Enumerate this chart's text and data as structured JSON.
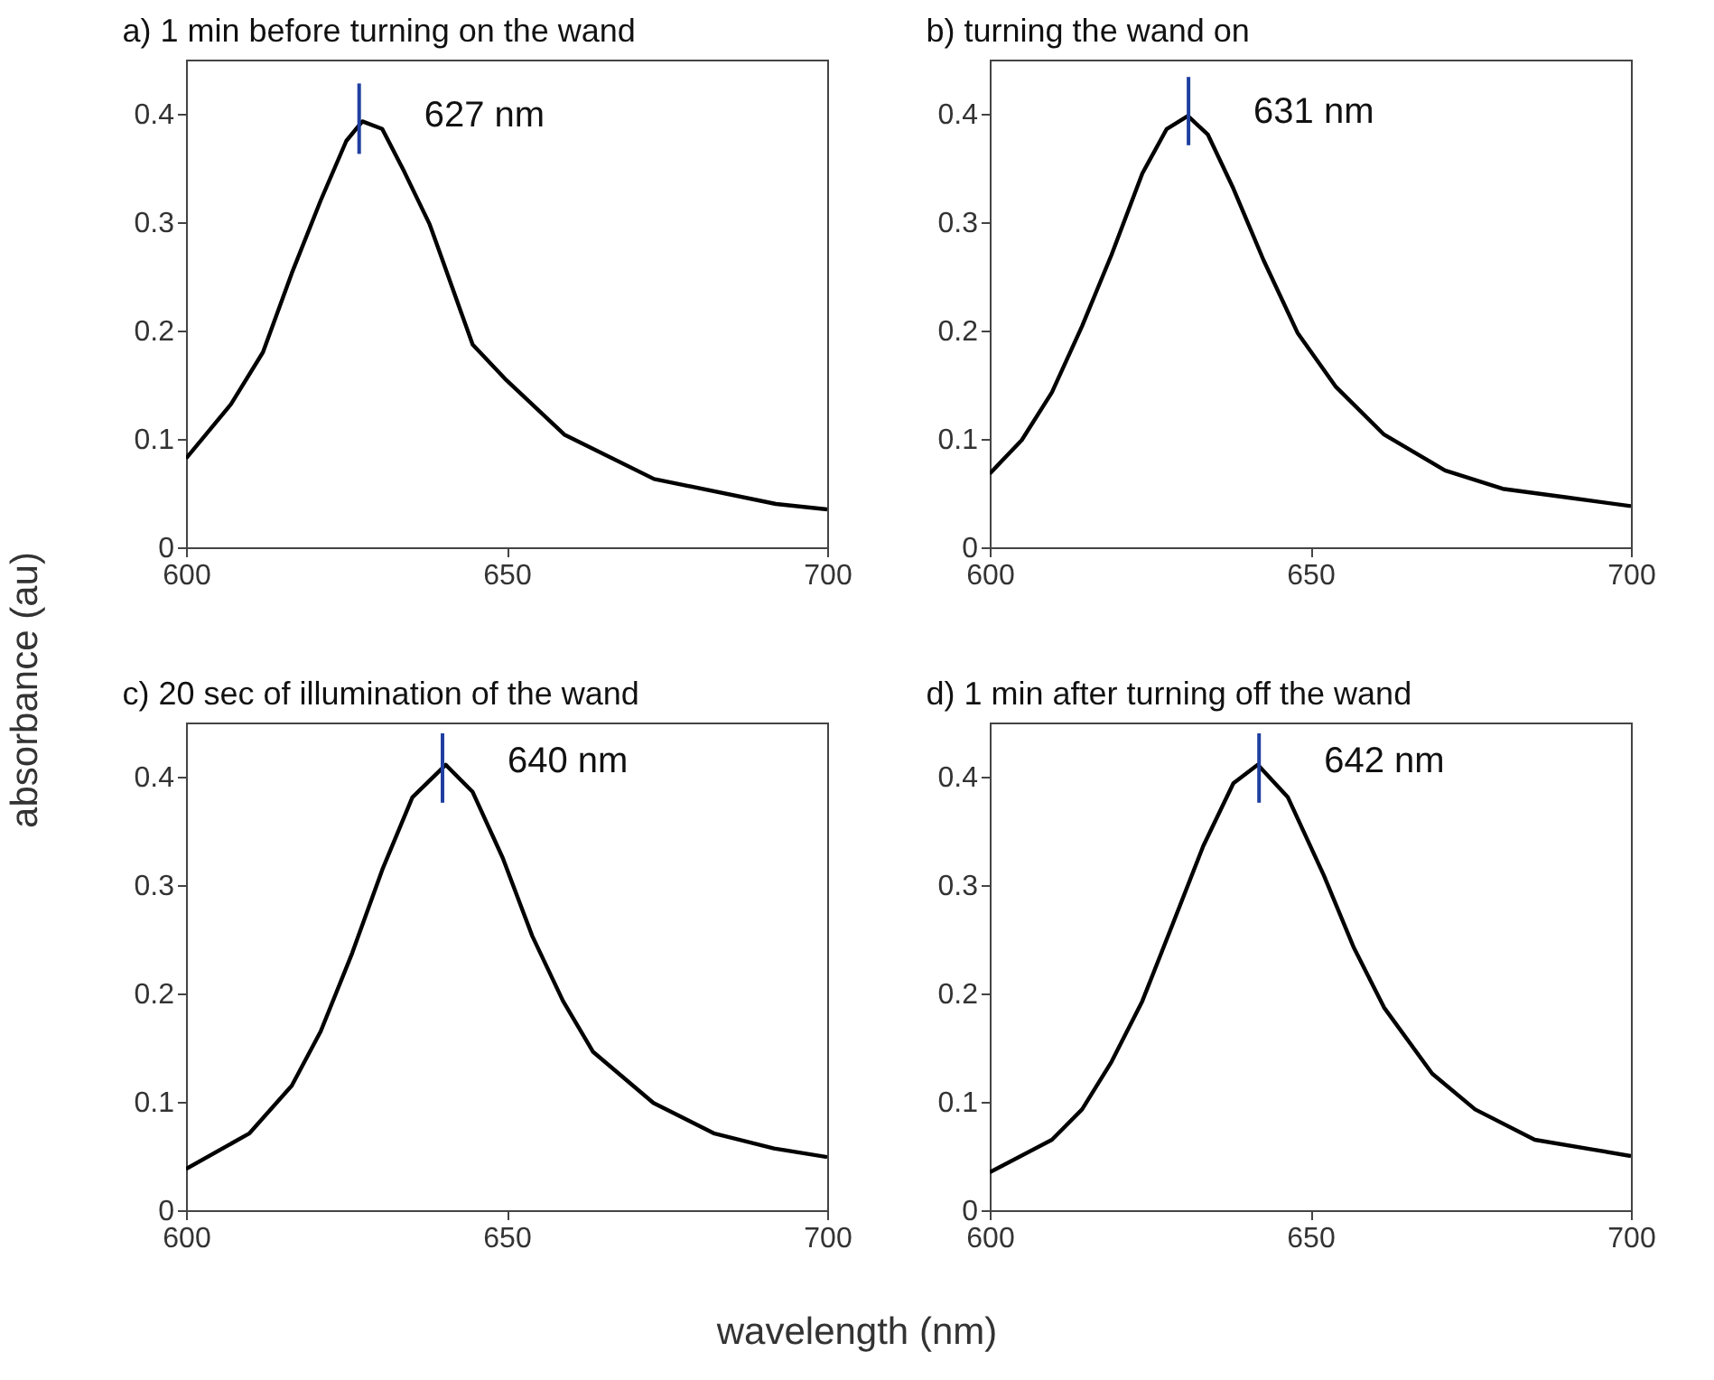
{
  "chart_data": [
    {
      "type": "line",
      "title": "a) 1 min before turning on the wand",
      "ylabel": "absorbance (au)",
      "xlim": [
        600,
        700
      ],
      "ylim": [
        0,
        0.45
      ],
      "xticks": [
        600,
        650,
        700
      ],
      "yticks": [
        0,
        0.1,
        0.2,
        0.3,
        0.4
      ],
      "grid": false,
      "annotations": [
        {
          "text": "627 nm",
          "x": 627,
          "y": 0.395
        }
      ],
      "series": [
        {
          "color": "#000000",
          "x": [
            600,
            607,
            612,
            616.5,
            621,
            625,
            627.5,
            630.6,
            634,
            638,
            640,
            644.7,
            650,
            659,
            673,
            692,
            700
          ],
          "values": [
            0.082,
            0.132,
            0.18,
            0.253,
            0.32,
            0.375,
            0.393,
            0.386,
            0.347,
            0.298,
            0.265,
            0.187,
            0.154,
            0.104,
            0.063,
            0.04,
            0.035
          ]
        },
        {
          "color": "#1f3fa0",
          "x": [
            627,
            627
          ],
          "values": [
            0.363,
            0.428
          ]
        }
      ]
    },
    {
      "type": "line",
      "title": "b) turning the wand on",
      "xlim": [
        600,
        700
      ],
      "ylim": [
        0,
        0.45
      ],
      "xticks": [
        600,
        650,
        700
      ],
      "yticks": [
        0,
        0.1,
        0.2,
        0.3,
        0.4
      ],
      "grid": false,
      "annotations": [
        {
          "text": "631 nm",
          "x": 631,
          "y": 0.398
        }
      ],
      "series": [
        {
          "color": "#000000",
          "x": [
            600,
            605,
            609.7,
            614.4,
            619,
            623.8,
            627.6,
            630.9,
            634,
            638,
            642.7,
            648,
            654,
            661.5,
            671,
            680,
            690,
            700
          ],
          "values": [
            0.068,
            0.099,
            0.143,
            0.204,
            0.27,
            0.345,
            0.386,
            0.398,
            0.381,
            0.331,
            0.265,
            0.198,
            0.148,
            0.104,
            0.071,
            0.054,
            0.046,
            0.038
          ]
        },
        {
          "color": "#1f3fa0",
          "x": [
            631,
            631
          ],
          "values": [
            0.371,
            0.434
          ]
        }
      ]
    },
    {
      "type": "line",
      "title": "c) 20 sec of illumination of the wand",
      "xlabel": "wavelength (nm)",
      "xlim": [
        600,
        700
      ],
      "ylim": [
        0,
        0.45
      ],
      "xticks": [
        600,
        650,
        700
      ],
      "yticks": [
        0,
        0.1,
        0.2,
        0.3,
        0.4
      ],
      "grid": false,
      "annotations": [
        {
          "text": "640 nm",
          "x": 640,
          "y": 0.411
        }
      ],
      "series": [
        {
          "color": "#000000",
          "x": [
            600,
            609.9,
            616.5,
            621,
            625.9,
            630.6,
            635.3,
            640.5,
            644.7,
            649.4,
            654,
            658.8,
            663.5,
            672.9,
            682.3,
            691.7,
            700
          ],
          "values": [
            0.038,
            0.071,
            0.115,
            0.165,
            0.237,
            0.314,
            0.381,
            0.411,
            0.386,
            0.325,
            0.253,
            0.193,
            0.146,
            0.099,
            0.071,
            0.057,
            0.049
          ]
        },
        {
          "color": "#1f3fa0",
          "x": [
            640,
            640
          ],
          "values": [
            0.376,
            0.44
          ]
        }
      ]
    },
    {
      "type": "line",
      "title": "d) 1 min after turning off the wand",
      "xlim": [
        600,
        700
      ],
      "ylim": [
        0,
        0.45
      ],
      "xticks": [
        600,
        650,
        700
      ],
      "yticks": [
        0,
        0.1,
        0.2,
        0.3,
        0.4
      ],
      "grid": false,
      "annotations": [
        {
          "text": "642 nm",
          "x": 642,
          "y": 0.411
        }
      ],
      "series": [
        {
          "color": "#000000",
          "x": [
            600,
            609.7,
            614.4,
            619,
            623.8,
            628.6,
            633.3,
            638,
            641.8,
            646.5,
            652.1,
            656.8,
            661.5,
            669,
            675.7,
            685,
            700
          ],
          "values": [
            0.035,
            0.065,
            0.093,
            0.137,
            0.193,
            0.265,
            0.336,
            0.394,
            0.411,
            0.381,
            0.309,
            0.242,
            0.187,
            0.126,
            0.093,
            0.065,
            0.05
          ]
        },
        {
          "color": "#1f3fa0",
          "x": [
            642,
            642
          ],
          "values": [
            0.376,
            0.44
          ]
        }
      ]
    }
  ]
}
